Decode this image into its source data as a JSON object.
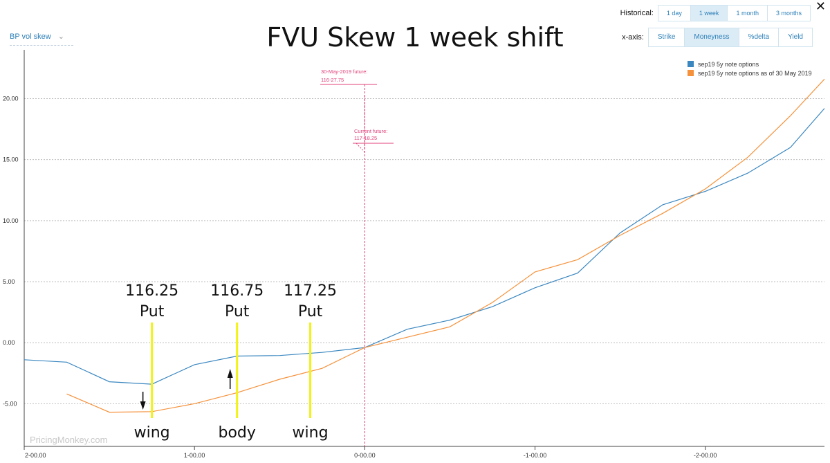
{
  "header": {
    "dropdown_label": "BP vol skew",
    "close_label": "✕",
    "historical": {
      "label": "Historical:",
      "options": [
        "1 day",
        "1 week",
        "1 month",
        "3 months"
      ],
      "selected": "1 week"
    },
    "xaxis": {
      "label": "x-axis:",
      "options": [
        "Strike",
        "Moneyness",
        "%delta",
        "Yield"
      ],
      "selected": "Moneyness"
    }
  },
  "chart_data": {
    "type": "line",
    "title": "FVU Skew 1 week shift",
    "xlabel": "",
    "ylabel": "",
    "x_tick_labels": [
      "2-00.00",
      "1-00.00",
      "0-00.00",
      "-1-00.00",
      "-2-00.00"
    ],
    "x_tick_values": [
      -2,
      -1,
      0,
      1,
      2
    ],
    "xlim": [
      -2,
      2.7
    ],
    "ylim": [
      -8.5,
      24
    ],
    "y_ticks": [
      -5,
      0,
      5,
      10,
      15,
      20
    ],
    "y_tick_labels": [
      "-5.00",
      "0.00",
      "5.00",
      "10.00",
      "15.00",
      "20.00"
    ],
    "grid": true,
    "legend_position": "top-right",
    "series": [
      {
        "name": "sep19 5y note options",
        "color": "#3b87c0",
        "x": [
          -2,
          -1.75,
          -1.5,
          -1.25,
          -1,
          -0.75,
          -0.5,
          -0.25,
          0,
          0.25,
          0.5,
          0.75,
          1,
          1.25,
          1.5,
          1.75,
          2,
          2.25,
          2.5,
          2.7
        ],
        "y": [
          -1.4,
          -1.6,
          -3.2,
          -3.4,
          -1.8,
          -1.1,
          -1.05,
          -0.8,
          -0.4,
          1.1,
          1.85,
          2.95,
          4.5,
          5.7,
          9.0,
          11.3,
          12.4,
          13.9,
          16.0,
          19.2
        ]
      },
      {
        "name": "sep19 5y note options as of 30 May 2019",
        "color": "#f5913a",
        "x": [
          -1.75,
          -1.5,
          -1.25,
          -1,
          -0.75,
          -0.5,
          -0.25,
          0,
          0.25,
          0.5,
          0.75,
          1,
          1.25,
          1.5,
          1.75,
          2,
          2.25,
          2.5,
          2.7
        ],
        "y": [
          -4.2,
          -5.7,
          -5.65,
          -5.0,
          -4.1,
          -3.0,
          -2.1,
          -0.4,
          0.45,
          1.3,
          3.3,
          5.8,
          6.8,
          8.8,
          10.6,
          12.6,
          15.2,
          18.6,
          21.6
        ]
      }
    ],
    "reference_lines": [
      {
        "x": 0,
        "label_line1": "30-May-2019 future:",
        "label_line2": "116-27.75"
      },
      {
        "x": 0,
        "label_line1": "Current future:",
        "label_line2": "117-18.25"
      }
    ],
    "annotations": [
      {
        "x": -1.25,
        "top_line1": "116.25",
        "top_line2": "Put",
        "bottom": "wing",
        "arrow": "down"
      },
      {
        "x": -0.75,
        "top_line1": "116.75",
        "top_line2": "Put",
        "bottom": "body",
        "arrow": "up"
      },
      {
        "x": -0.32,
        "top_line1": "117.25",
        "top_line2": "Put",
        "bottom": "wing",
        "arrow": "none"
      }
    ],
    "watermark": "PricingMonkey.com"
  }
}
